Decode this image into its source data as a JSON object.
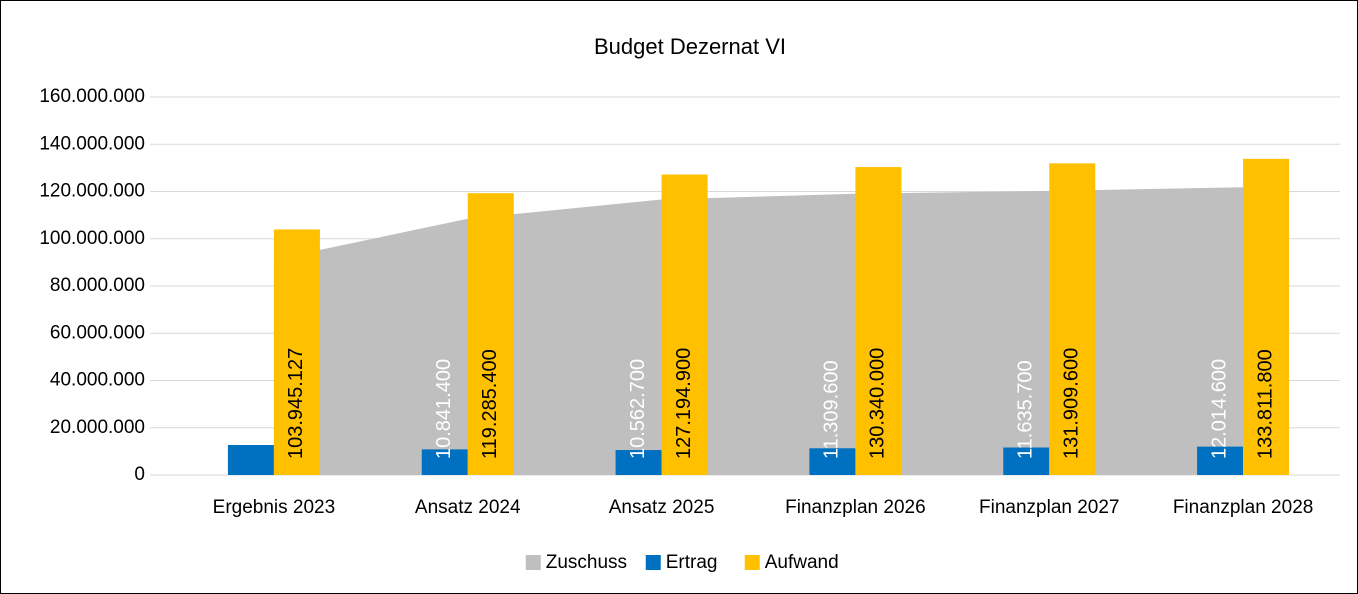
{
  "chart_data": {
    "type": "bar",
    "title": "Budget Dezernat VI",
    "categories": [
      "Ergebnis 2023",
      "Ansatz 2024",
      "Ansatz 2025",
      "Finanzplan 2026",
      "Finanzplan 2027",
      "Finanzplan 2028"
    ],
    "series": [
      {
        "name": "Zuschuss",
        "type": "area",
        "color": "#bfbfbf",
        "values": [
          91200000,
          108444000,
          116632200,
          119030400,
          120273900,
          121797200
        ]
      },
      {
        "name": "Ertrag",
        "color": "#0070c0",
        "values": [
          12700000,
          10841400,
          10562700,
          11309600,
          11635700,
          12014600
        ],
        "value_labels": [
          null,
          "10.841.400",
          "10.562.700",
          "11.309.600",
          "11.635.700",
          "12.014.600"
        ]
      },
      {
        "name": "Aufwand",
        "color": "#ffc000",
        "values": [
          103945127,
          119285400,
          127194900,
          130340000,
          131909600,
          133811800
        ],
        "value_labels": [
          "103.945.127",
          "119.285.400",
          "127.194.900",
          "130.340.000",
          "131.909.600",
          "133.811.800"
        ]
      }
    ],
    "ylim": [
      0,
      160000000
    ],
    "yticks": [
      0,
      {
        "value": 20000000,
        "label": "20.000.000"
      },
      {
        "value": 40000000,
        "label": "40.000.000"
      },
      {
        "value": 60000000,
        "label": "60.000.000"
      },
      {
        "value": 80000000,
        "label": "80.000.000"
      },
      {
        "value": 100000000,
        "label": "100.000.000"
      },
      {
        "value": 120000000,
        "label": "120.000.000"
      },
      {
        "value": 140000000,
        "label": "140.000.000"
      },
      {
        "value": 160000000,
        "label": "160.000.000"
      }
    ],
    "grid": true,
    "legend": "bottom"
  }
}
